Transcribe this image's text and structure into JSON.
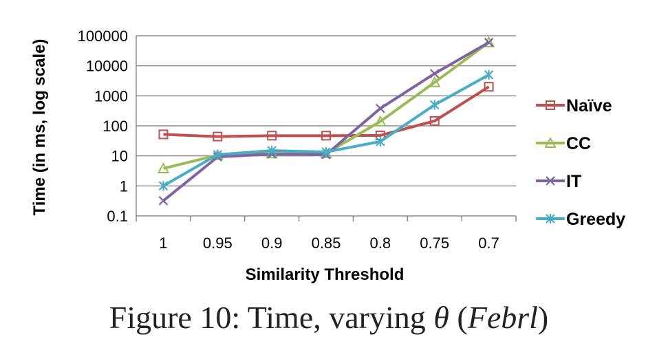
{
  "chart_data": {
    "type": "line",
    "categories": [
      "1",
      "0.95",
      "0.9",
      "0.85",
      "0.8",
      "0.75",
      "0.7"
    ],
    "xlabel": "Similarity Threshold",
    "ylabel": "Time (in ms, log scale)",
    "yscale": "log",
    "ylim": [
      0.1,
      100000
    ],
    "yticks": [
      "0.1",
      "1",
      "10",
      "100",
      "1000",
      "10000",
      "100000"
    ],
    "grid": "horizontal",
    "legend_position": "right",
    "series": [
      {
        "name": "Naïve",
        "color": "#c0504d",
        "marker": "square",
        "values": [
          52,
          44,
          47,
          47,
          48,
          145,
          2000
        ]
      },
      {
        "name": "CC",
        "color": "#9bbb59",
        "marker": "triangle",
        "values": [
          3.8,
          10.5,
          12,
          12,
          140,
          2800,
          60000
        ]
      },
      {
        "name": "IT",
        "color": "#8064a2",
        "marker": "x",
        "values": [
          0.32,
          9.2,
          11.5,
          11,
          380,
          5500,
          60000
        ]
      },
      {
        "name": "Greedy",
        "color": "#4bacc6",
        "marker": "star",
        "values": [
          1.0,
          11,
          15,
          13.5,
          30,
          500,
          5000
        ]
      }
    ]
  },
  "caption": {
    "prefix": "Figure 10: Time, varying ",
    "theta": "θ",
    "open_paren": " (",
    "dataset": "Febrl",
    "close_paren": ")"
  }
}
